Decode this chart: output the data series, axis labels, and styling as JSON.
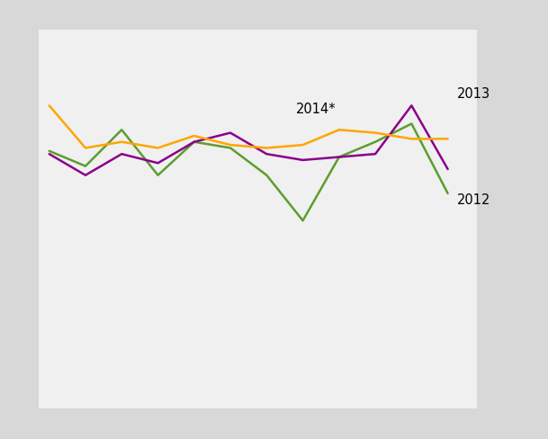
{
  "background_color": "#d8d8d8",
  "plot_bg_color": "#f0f0f0",
  "grid_color": "#ffffff",
  "series_2012": {
    "color": "#5b9e2d",
    "values": [
      135,
      130,
      142,
      127,
      138,
      136,
      127,
      112,
      133,
      138,
      144,
      121
    ]
  },
  "series_2013": {
    "color": "#8b008b",
    "values": [
      134,
      127,
      134,
      131,
      138,
      141,
      134,
      132,
      133,
      134,
      150,
      129
    ]
  },
  "series_2014": {
    "color": "#ffa500",
    "values": [
      150,
      136,
      138,
      136,
      140,
      137,
      136,
      137,
      142,
      141,
      139,
      139
    ]
  },
  "num_points": 12,
  "ylim": [
    50,
    175
  ],
  "xlim_min": -0.3,
  "xlim_max": 11.8,
  "label_2013": "2013",
  "label_2012": "2012",
  "label_2014": "2014*",
  "linewidth": 1.8,
  "label_fontsize": 10.5
}
